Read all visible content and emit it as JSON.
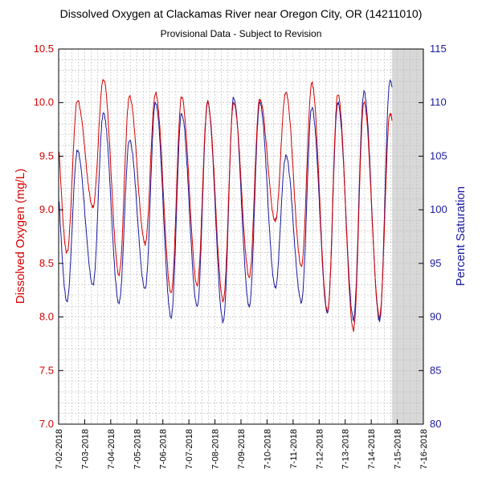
{
  "chart_data": {
    "type": "line",
    "title": "Dissolved Oxygen at Clackamas River near Oregon City, OR (14211010)",
    "subtitle": "Provisional Data - Subject to Revision",
    "ylabel_left": "Dissolved Oxygen (mg/L)",
    "ylabel_right": "Percent Saturation",
    "ylim_left": [
      7.0,
      10.5
    ],
    "ylim_right": [
      80,
      115
    ],
    "yticks_left": [
      "7.0",
      "7.5",
      "8.0",
      "8.5",
      "9.0",
      "9.5",
      "10.0",
      "10.5"
    ],
    "yticks_right": [
      "80",
      "85",
      "90",
      "95",
      "100",
      "105",
      "110",
      "115"
    ],
    "xticks": [
      "7-02-2018",
      "7-03-2018",
      "7-04-2018",
      "7-05-2018",
      "7-06-2018",
      "7-07-2018",
      "7-08-2018",
      "7-09-2018",
      "7-10-2018",
      "7-11-2018",
      "7-12-2018",
      "7-13-2018",
      "7-14-2018",
      "7-15-2018",
      "7-16-2018"
    ],
    "x_range_days": [
      0,
      14
    ],
    "data_end_day": 12.8,
    "grid": true,
    "shaded_region_after_day": 12.8,
    "colors": {
      "do": "#d40000",
      "sat": "#1a1aa0",
      "shade": "#d8d8d8",
      "grid": "#b8b8b8"
    },
    "series": [
      {
        "name": "Dissolved Oxygen (mg/L)",
        "axis": "left",
        "daily_max": [
          10.02,
          10.22,
          10.06,
          10.09,
          10.05,
          10.0,
          10.0,
          10.03,
          10.1,
          10.18,
          10.08,
          10.0,
          9.9
        ],
        "daily_min": [
          8.6,
          9.02,
          8.4,
          8.68,
          8.22,
          8.3,
          8.15,
          8.38,
          8.9,
          8.47,
          8.05,
          7.88,
          8.0,
          8.48
        ]
      },
      {
        "name": "Percent Saturation",
        "axis": "right",
        "daily_max": [
          105.5,
          109.0,
          106.5,
          110.0,
          109.0,
          110.0,
          110.5,
          110.0,
          105.0,
          109.5,
          110.0,
          111.0,
          112.0
        ],
        "daily_min": [
          91.5,
          93.0,
          91.3,
          92.6,
          90.0,
          91.0,
          89.5,
          91.0,
          92.8,
          91.4,
          90.5,
          89.8,
          89.7,
          96.0
        ]
      }
    ]
  }
}
